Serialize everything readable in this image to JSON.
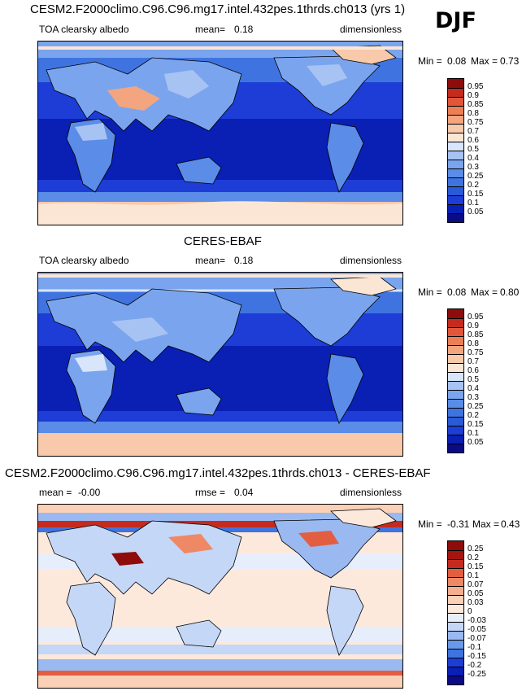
{
  "season": "DJF",
  "panels": [
    {
      "title": "CESM2.F2000climo.C96.C96.mg17.intel.432pes.1thrds.ch013 (yrs 1)",
      "variable": "TOA clearsky albedo",
      "mean_label": "mean=",
      "mean_value": "0.18",
      "units": "dimensionless",
      "min_label": "Min =",
      "min_value": "0.08",
      "max_label": "Max =",
      "max_value": "0.73",
      "colorbar_labels": [
        "0.95",
        "0.9",
        "0.85",
        "0.8",
        "0.75",
        "0.7",
        "0.6",
        "0.5",
        "0.4",
        "0.3",
        "0.25",
        "0.2",
        "0.15",
        "0.1",
        "0.05"
      ]
    },
    {
      "title": "CERES-EBAF",
      "variable": "TOA clearsky albedo",
      "mean_label": "mean=",
      "mean_value": "0.18",
      "units": "dimensionless",
      "min_label": "Min =",
      "min_value": "0.08",
      "max_label": "Max =",
      "max_value": "0.80",
      "colorbar_labels": [
        "0.95",
        "0.9",
        "0.85",
        "0.8",
        "0.75",
        "0.7",
        "0.6",
        "0.5",
        "0.4",
        "0.3",
        "0.25",
        "0.2",
        "0.15",
        "0.1",
        "0.05"
      ]
    },
    {
      "title": "CESM2.F2000climo.C96.C96.mg17.intel.432pes.1thrds.ch013 - CERES-EBAF",
      "variable_label": "mean =",
      "mean_value": "-0.00",
      "rmse_label": "rmse =",
      "rmse_value": "0.04",
      "units": "dimensionless",
      "min_label": "Min =",
      "min_value": "-0.31",
      "max_label": "Max =",
      "max_value": "0.43",
      "colorbar_labels": [
        "0.25",
        "0.2",
        "0.15",
        "0.1",
        "0.07",
        "0.05",
        "0.03",
        "0",
        "-0.03",
        "-0.05",
        "-0.07",
        "-0.1",
        "-0.15",
        "-0.2",
        "-0.25"
      ]
    }
  ],
  "colors": {
    "abs_scale": [
      "#0b0b86",
      "#0a1fb4",
      "#1d3dd6",
      "#2a5bd7",
      "#3f74e0",
      "#5a8ce8",
      "#7aa5ee",
      "#a7c3f3",
      "#d8e5fa",
      "#fbe6d5",
      "#f8c9aa",
      "#f3a57f",
      "#ec7f56",
      "#e2573a",
      "#c42b1e",
      "#8e0c0c"
    ],
    "diff_scale": [
      "#0b0b86",
      "#0a1fb4",
      "#1d3dd6",
      "#3f74e0",
      "#6a98ea",
      "#9ab9f1",
      "#c5d7f7",
      "#e6eefc",
      "#fde9dc",
      "#fad0b7",
      "#f5ae8e",
      "#ee8865",
      "#e35e40",
      "#c42b1e",
      "#a5150f",
      "#8e0c0c"
    ]
  }
}
